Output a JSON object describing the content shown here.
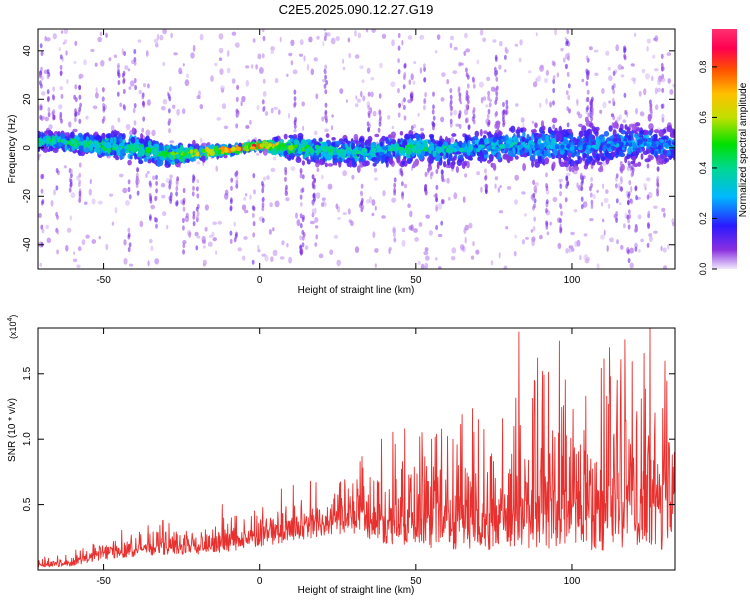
{
  "figure_title": "C2E5.2025.090.12.27.G19",
  "chart_data": [
    {
      "type": "heatmap",
      "xlabel": "Height of straight line (km)",
      "ylabel": "Frequency (Hz)",
      "xlim": [
        -71,
        133
      ],
      "ylim": [
        -50,
        49
      ],
      "xticks": [
        -50,
        0,
        50,
        100
      ],
      "yticks": [
        -40,
        -20,
        0,
        20,
        40
      ],
      "colorbar": {
        "label": "Normalized spectral amplitude",
        "range": [
          0.0,
          0.95
        ],
        "ticks": [
          0.0,
          0.2,
          0.4,
          0.6,
          0.8
        ],
        "colors": [
          "#e8d8f8",
          "#6a00d8",
          "#2020ff",
          "#00c0ff",
          "#00d8a0",
          "#00e000",
          "#c8e000",
          "#ffc000",
          "#ff4000",
          "#ff0060",
          "#ff3070"
        ]
      },
      "ridge": {
        "x": [
          -70,
          -60,
          -50,
          -40,
          -30,
          -20,
          -10,
          0,
          10,
          20,
          30,
          40,
          50,
          60,
          70,
          80,
          90,
          100,
          110,
          120,
          130
        ],
        "center_hz": [
          3,
          2,
          1,
          0,
          -3,
          -2,
          -1,
          1,
          0,
          -1,
          -2,
          -1,
          0,
          -1,
          0,
          1,
          1,
          0,
          1,
          2,
          1
        ],
        "spread_hz": [
          6,
          6,
          8,
          10,
          8,
          5,
          3,
          2,
          8,
          9,
          9,
          10,
          10,
          10,
          11,
          12,
          14,
          14,
          14,
          14,
          12
        ],
        "peak_amplitude": [
          0.5,
          0.5,
          0.55,
          0.5,
          0.6,
          0.7,
          0.85,
          0.95,
          0.6,
          0.5,
          0.45,
          0.45,
          0.5,
          0.45,
          0.4,
          0.4,
          0.4,
          0.35,
          0.35,
          0.35,
          0.35
        ]
      }
    },
    {
      "type": "line",
      "xlabel": "Height of straight line (km)",
      "ylabel": "SNR (10 * v/v)",
      "y_multiplier_label": "(x10",
      "y_multiplier_exp": "4",
      "xlim": [
        -71,
        133
      ],
      "ylim": [
        0,
        1.85
      ],
      "xticks": [
        -50,
        0,
        50,
        100
      ],
      "yticks": [
        0.5,
        1.0,
        1.5
      ],
      "ytick_labels": [
        "0.5",
        "1.0",
        "1.5"
      ],
      "series": [
        {
          "color": "#e8302e",
          "x": [
            -70,
            -60,
            -50,
            -40,
            -30,
            -20,
            -10,
            0,
            10,
            20,
            30,
            40,
            50,
            60,
            70,
            80,
            90,
            100,
            110,
            120,
            130
          ],
          "baseline": [
            0.02,
            0.03,
            0.08,
            0.1,
            0.12,
            0.12,
            0.14,
            0.18,
            0.22,
            0.26,
            0.28,
            0.2,
            0.18,
            0.16,
            0.15,
            0.15,
            0.15,
            0.15,
            0.15,
            0.15,
            0.15
          ],
          "envelope": [
            0.08,
            0.12,
            0.25,
            0.3,
            0.32,
            0.3,
            0.34,
            0.4,
            0.55,
            0.6,
            0.68,
            0.9,
            0.9,
            0.95,
            1.05,
            1.15,
            1.3,
            1.3,
            1.4,
            1.45,
            1.35
          ],
          "peaks": [
            {
              "x": 83,
              "y": 1.82
            },
            {
              "x": 89,
              "y": 1.62
            },
            {
              "x": 96,
              "y": 1.75
            },
            {
              "x": 112,
              "y": 1.7
            },
            {
              "x": 117,
              "y": 1.76
            },
            {
              "x": 125,
              "y": 1.85
            },
            {
              "x": 39,
              "y": 1.0
            },
            {
              "x": 52,
              "y": 1.05
            },
            {
              "x": 70,
              "y": 1.15
            },
            {
              "x": -31,
              "y": 0.38
            },
            {
              "x": -12,
              "y": 0.5
            },
            {
              "x": 7,
              "y": 0.62
            }
          ]
        }
      ]
    }
  ]
}
